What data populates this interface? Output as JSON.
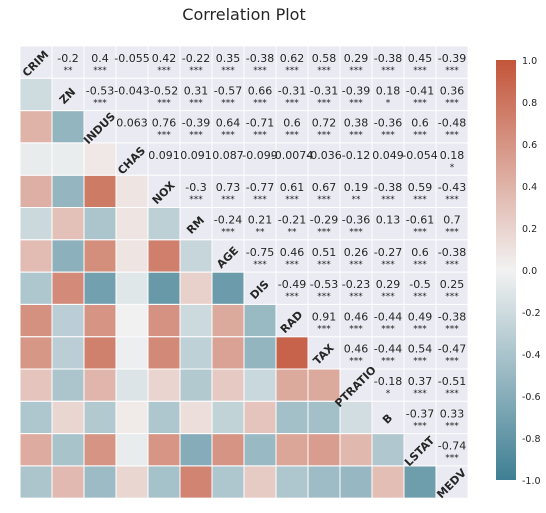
{
  "chart_data": {
    "type": "heatmap",
    "title": "Correlation Plot",
    "variables": [
      "CRIM",
      "ZN",
      "INDUS",
      "CHAS",
      "NOX",
      "RM",
      "AGE",
      "DIS",
      "RAD",
      "TAX",
      "PTRATIO",
      "B",
      "LSTAT",
      "MEDV"
    ],
    "upper_labels": [
      [
        null,
        "-0.2",
        "0.4",
        "-0.055",
        "0.42",
        "-0.22",
        "0.35",
        "-0.38",
        "0.62",
        "0.58",
        "0.29",
        "-0.38",
        "0.45",
        "-0.39"
      ],
      [
        null,
        null,
        "-0.53",
        "-0.043",
        "-0.52",
        "0.31",
        "-0.57",
        "0.66",
        "-0.31",
        "-0.31",
        "-0.39",
        "0.18",
        "-0.41",
        "0.36"
      ],
      [
        null,
        null,
        null,
        "0.063",
        "0.76",
        "-0.39",
        "0.64",
        "-0.71",
        "0.6",
        "0.72",
        "0.38",
        "-0.36",
        "0.6",
        "-0.48"
      ],
      [
        null,
        null,
        null,
        null,
        "0.091",
        "0.091",
        "0.087",
        "-0.099",
        "-0.0074",
        "-0.036",
        "-0.12",
        "0.049",
        "-0.054",
        "0.18"
      ],
      [
        null,
        null,
        null,
        null,
        null,
        "-0.3",
        "0.73",
        "-0.77",
        "0.61",
        "0.67",
        "0.19",
        "-0.38",
        "0.59",
        "-0.43"
      ],
      [
        null,
        null,
        null,
        null,
        null,
        null,
        "-0.24",
        "0.21",
        "-0.21",
        "-0.29",
        "-0.36",
        "0.13",
        "-0.61",
        "0.7"
      ],
      [
        null,
        null,
        null,
        null,
        null,
        null,
        null,
        "-0.75",
        "0.46",
        "0.51",
        "0.26",
        "-0.27",
        "0.6",
        "-0.38"
      ],
      [
        null,
        null,
        null,
        null,
        null,
        null,
        null,
        null,
        "-0.49",
        "-0.53",
        "-0.23",
        "0.29",
        "-0.5",
        "0.25"
      ],
      [
        null,
        null,
        null,
        null,
        null,
        null,
        null,
        null,
        null,
        "0.91",
        "0.46",
        "-0.44",
        "0.49",
        "-0.38"
      ],
      [
        null,
        null,
        null,
        null,
        null,
        null,
        null,
        null,
        null,
        null,
        "0.46",
        "-0.44",
        "0.54",
        "-0.47"
      ],
      [
        null,
        null,
        null,
        null,
        null,
        null,
        null,
        null,
        null,
        null,
        null,
        "-0.18",
        "0.37",
        "-0.51"
      ],
      [
        null,
        null,
        null,
        null,
        null,
        null,
        null,
        null,
        null,
        null,
        null,
        null,
        "-0.37",
        "0.33"
      ],
      [
        null,
        null,
        null,
        null,
        null,
        null,
        null,
        null,
        null,
        null,
        null,
        null,
        null,
        "-0.74"
      ],
      [
        null,
        null,
        null,
        null,
        null,
        null,
        null,
        null,
        null,
        null,
        null,
        null,
        null,
        null
      ]
    ],
    "significance": [
      [
        null,
        "**",
        "***",
        "",
        "***",
        "***",
        "***",
        "***",
        "***",
        "***",
        "***",
        "***",
        "***",
        "***"
      ],
      [
        null,
        null,
        "***",
        "",
        "***",
        "***",
        "***",
        "***",
        "***",
        "***",
        "***",
        "*",
        "***",
        "***"
      ],
      [
        null,
        null,
        null,
        "",
        "***",
        "***",
        "***",
        "***",
        "***",
        "***",
        "***",
        "***",
        "***",
        "***"
      ],
      [
        null,
        null,
        null,
        null,
        "",
        "",
        "",
        "",
        "",
        "",
        "",
        "",
        "",
        "*"
      ],
      [
        null,
        null,
        null,
        null,
        null,
        "***",
        "***",
        "***",
        "***",
        "***",
        "**",
        "***",
        "***",
        "***"
      ],
      [
        null,
        null,
        null,
        null,
        null,
        null,
        "***",
        "**",
        "**",
        "***",
        "***",
        "",
        "***",
        "***"
      ],
      [
        null,
        null,
        null,
        null,
        null,
        null,
        null,
        "***",
        "***",
        "***",
        "***",
        "***",
        "***",
        "***"
      ],
      [
        null,
        null,
        null,
        null,
        null,
        null,
        null,
        null,
        "***",
        "***",
        "***",
        "***",
        "***",
        "***"
      ],
      [
        null,
        null,
        null,
        null,
        null,
        null,
        null,
        null,
        null,
        "***",
        "***",
        "***",
        "***",
        "***"
      ],
      [
        null,
        null,
        null,
        null,
        null,
        null,
        null,
        null,
        null,
        null,
        "***",
        "***",
        "***",
        "***"
      ],
      [
        null,
        null,
        null,
        null,
        null,
        null,
        null,
        null,
        null,
        null,
        null,
        "*",
        "***",
        "***"
      ],
      [
        null,
        null,
        null,
        null,
        null,
        null,
        null,
        null,
        null,
        null,
        null,
        null,
        "***",
        "***"
      ],
      [
        null,
        null,
        null,
        null,
        null,
        null,
        null,
        null,
        null,
        null,
        null,
        null,
        null,
        "***"
      ],
      [
        null,
        null,
        null,
        null,
        null,
        null,
        null,
        null,
        null,
        null,
        null,
        null,
        null,
        null
      ]
    ],
    "colorbar": {
      "range": [
        -1.0,
        1.0
      ],
      "ticks": [
        "1.0",
        "0.8",
        "0.6",
        "0.4",
        "0.2",
        "0.0",
        "-0.2",
        "-0.4",
        "-0.6",
        "-0.8",
        "-1.0"
      ],
      "low_color": "#3f7f93",
      "mid_color": "#f2f2f2",
      "high_color": "#c3553a"
    },
    "background_color": "#eaeaf2"
  }
}
